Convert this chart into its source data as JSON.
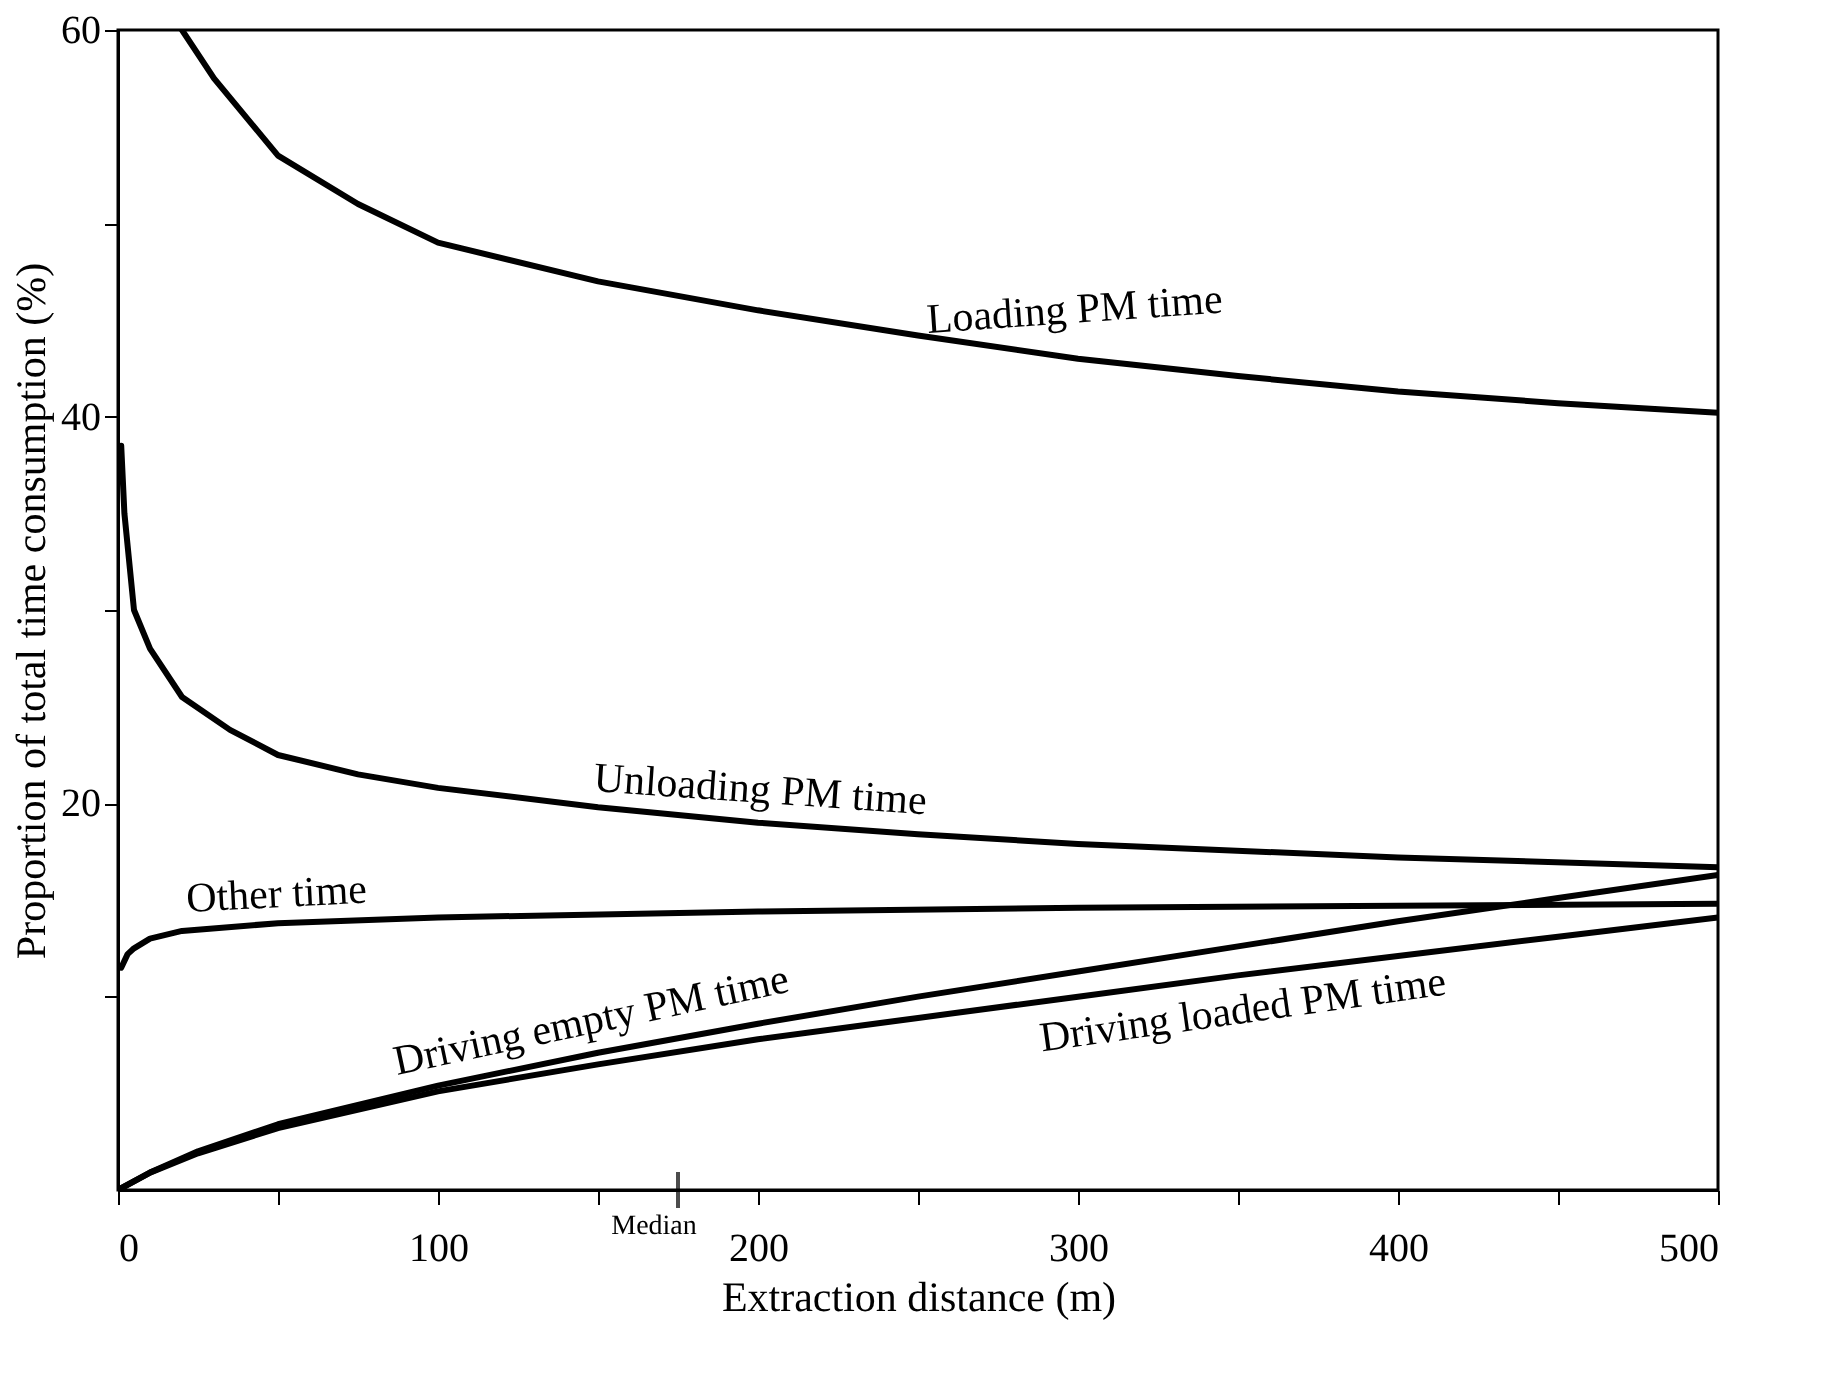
{
  "chart_data": {
    "type": "line",
    "xlabel": "Extraction distance (m)",
    "ylabel": "Proportion of total time consumption (%)",
    "xlim": [
      0,
      500
    ],
    "ylim": [
      0,
      60
    ],
    "xticks": [
      0,
      {
        "value": 50,
        "label": null
      },
      100,
      {
        "value": 150,
        "label": null
      },
      200,
      {
        "value": 250,
        "label": null
      },
      300,
      {
        "value": 350,
        "label": null
      },
      400,
      {
        "value": 450,
        "label": null
      },
      500
    ],
    "yticks": [
      {
        "value": 10,
        "label": null
      },
      20,
      {
        "value": 30,
        "label": null
      },
      40,
      {
        "value": 50,
        "label": null
      },
      60
    ],
    "grid": false,
    "marker": "none",
    "line_style": "solid",
    "ref_lines": [
      {
        "axis": "x",
        "value": 175,
        "label": "Median"
      }
    ],
    "series": [
      {
        "name": "Loading PM time",
        "color": "#000000",
        "x": [
          20,
          30,
          50,
          75,
          100,
          150,
          200,
          250,
          300,
          350,
          400,
          450,
          500
        ],
        "values": [
          60,
          57.5,
          53.5,
          51,
          49,
          47,
          45.5,
          44.2,
          43,
          42.1,
          41.3,
          40.7,
          40.2
        ]
      },
      {
        "name": "Unloading PM time",
        "color": "#000000",
        "x": [
          1,
          2,
          5,
          10,
          20,
          35,
          50,
          75,
          100,
          150,
          200,
          250,
          300,
          400,
          500
        ],
        "values": [
          38.5,
          35,
          30,
          28,
          25.5,
          23.8,
          22.5,
          21.5,
          20.8,
          19.8,
          19,
          18.4,
          17.9,
          17.2,
          16.7
        ]
      },
      {
        "name": "Other time",
        "color": "#000000",
        "x": [
          1,
          3,
          5,
          10,
          20,
          50,
          100,
          200,
          300,
          400,
          500
        ],
        "values": [
          11.5,
          12.2,
          12.5,
          13,
          13.4,
          13.8,
          14.1,
          14.4,
          14.6,
          14.7,
          14.8
        ]
      },
      {
        "name": "Driving empty PM time",
        "color": "#000000",
        "x": [
          0,
          10,
          25,
          50,
          100,
          150,
          200,
          250,
          300,
          350,
          400,
          450,
          500
        ],
        "values": [
          0,
          0.9,
          2,
          3.4,
          5.4,
          7.1,
          8.6,
          10,
          11.3,
          12.6,
          13.9,
          15.1,
          16.3
        ]
      },
      {
        "name": "Driving loaded PM time",
        "color": "#000000",
        "x": [
          0,
          10,
          25,
          50,
          100,
          150,
          200,
          250,
          300,
          350,
          400,
          450,
          500
        ],
        "values": [
          0,
          0.9,
          1.9,
          3.2,
          5.1,
          6.5,
          7.8,
          8.9,
          10,
          11.1,
          12.1,
          13.1,
          14.1
        ]
      }
    ]
  }
}
